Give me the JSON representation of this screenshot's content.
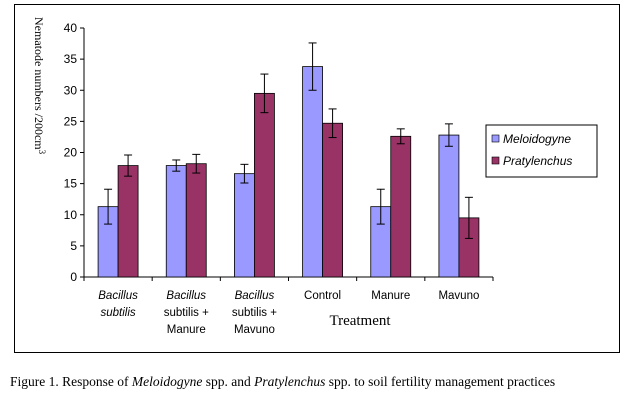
{
  "chart_data": {
    "type": "bar",
    "ylabel": "Nematode numbers /200cm",
    "ylabel_superscript": "3",
    "xlabel": "Treatment",
    "ylim": [
      0,
      40
    ],
    "yticks": [
      "0",
      "5",
      "10",
      "15",
      "20",
      "25",
      "30",
      "35",
      "40"
    ],
    "categories": [
      [
        "Bacillus",
        "subtilis"
      ],
      [
        "Bacillus",
        "subtilis +",
        "Manure"
      ],
      [
        "Bacillus",
        "subtilis +",
        "Mavuno"
      ],
      [
        "Control"
      ],
      [
        "Manure"
      ],
      [
        "Mavuno"
      ]
    ],
    "category_italic_lines": [
      [
        0,
        1
      ],
      [
        0
      ],
      [
        0
      ],
      [],
      [],
      []
    ],
    "series": [
      {
        "name": "Meloidogyne",
        "color": "#9999ff",
        "values": [
          11.3,
          17.9,
          16.6,
          33.8,
          11.3,
          22.8
        ],
        "errors": [
          2.8,
          0.9,
          1.5,
          3.8,
          2.8,
          1.8
        ]
      },
      {
        "name": "Pratylenchus",
        "color": "#993366",
        "values": [
          17.9,
          18.2,
          29.5,
          24.7,
          22.6,
          9.5
        ],
        "errors": [
          1.7,
          1.5,
          3.1,
          2.3,
          1.2,
          3.3
        ]
      }
    ],
    "legend_position": "right"
  },
  "caption": {
    "prefix": "Figure 1. Response of ",
    "species1": "Meloidogyne",
    "middle": " spp. and ",
    "species2": "Pratylenchus",
    "suffix": " spp. to soil fertility management practices"
  }
}
